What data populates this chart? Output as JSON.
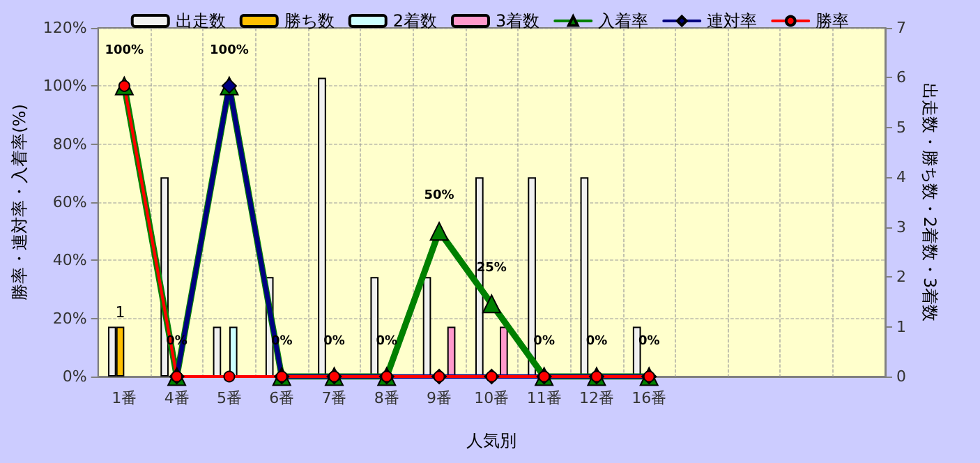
{
  "chart_data": {
    "type": "bar",
    "xlabel": "人気別",
    "ylabel": "勝率・連対率・入着率(%)",
    "y2label": "出走数・勝ち数・2着数・3着数",
    "categories": [
      "1番",
      "4番",
      "5番",
      "6番",
      "7番",
      "8番",
      "9番",
      "10番",
      "11番",
      "12番",
      "16番",
      null,
      null,
      null,
      null
    ],
    "series": [
      {
        "name": "出走数",
        "axis": "y2",
        "color": "#f0f0f0",
        "values": [
          1,
          4,
          1,
          2,
          6,
          2,
          2,
          4,
          4,
          4,
          1,
          null,
          null,
          null,
          null
        ]
      },
      {
        "name": "勝ち数",
        "axis": "y2",
        "color": "#ffc000",
        "values": [
          1,
          0,
          0,
          0,
          0,
          0,
          0,
          0,
          0,
          0,
          0,
          null,
          null,
          null,
          null
        ],
        "value_labels": [
          "1",
          null,
          null,
          null,
          null,
          null,
          null,
          null,
          null,
          null,
          null,
          null,
          null,
          null,
          null
        ]
      },
      {
        "name": "2着数",
        "axis": "y2",
        "color": "#ccffff",
        "values": [
          0,
          0,
          1,
          0,
          0,
          0,
          0,
          0,
          0,
          0,
          0,
          null,
          null,
          null,
          null
        ]
      },
      {
        "name": "3着数",
        "axis": "y2",
        "color": "#ff99cc",
        "values": [
          0,
          0,
          0,
          0,
          0,
          0,
          1,
          1,
          0,
          0,
          0,
          null,
          null,
          null,
          null
        ]
      },
      {
        "name": "入着率",
        "type": "line",
        "color": "#008000",
        "marker": "triangle",
        "values": [
          100,
          0,
          100,
          0,
          0,
          0,
          50,
          25,
          0,
          0,
          0,
          null,
          null,
          null,
          null
        ],
        "value_labels": [
          "100%",
          "0%",
          "100%",
          "0%",
          "0%",
          "0%",
          "50%",
          "25%",
          "0%",
          "0%",
          "0%",
          null,
          null,
          null,
          null
        ]
      },
      {
        "name": "連対率",
        "type": "line",
        "color": "#000080",
        "marker": "diamond",
        "values": [
          null,
          0,
          100,
          0,
          0,
          0,
          0,
          0,
          0,
          0,
          0,
          null,
          null,
          null,
          null
        ]
      },
      {
        "name": "勝率",
        "type": "line",
        "color": "#ff0000",
        "marker": "circle",
        "values": [
          100,
          0,
          0,
          0,
          0,
          0,
          0,
          0,
          0,
          0,
          0,
          null,
          null,
          null,
          null
        ]
      }
    ],
    "ylim": [
      0,
      120
    ],
    "yticks": [
      {
        "value": 0,
        "label": "0%"
      },
      {
        "value": 20,
        "label": "20%"
      },
      {
        "value": 40,
        "label": "40%"
      },
      {
        "value": 60,
        "label": "60%"
      },
      {
        "value": 80,
        "label": "80%"
      },
      {
        "value": 100,
        "label": "100%"
      },
      {
        "value": 120,
        "label": "120%"
      }
    ],
    "y2lim": [
      0,
      7
    ],
    "y2ticks": [
      0,
      1,
      2,
      3,
      4,
      5,
      6,
      7
    ],
    "grid": true,
    "legend": "top"
  }
}
